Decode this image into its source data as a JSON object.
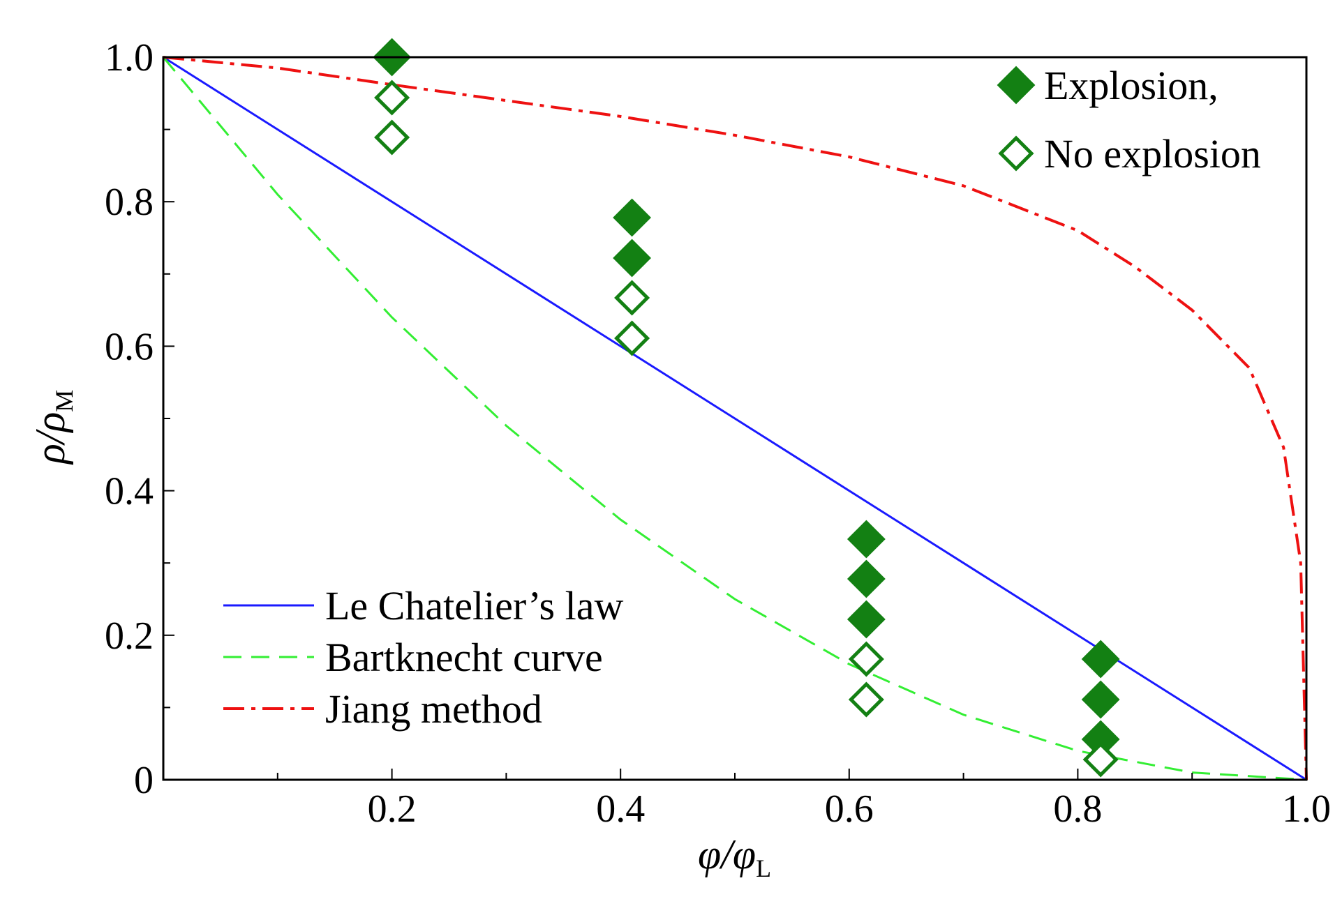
{
  "chart_data": {
    "type": "line",
    "xlabel": {
      "main": "φ/φ",
      "sub": "L"
    },
    "ylabel": {
      "main": "ρ/ρ",
      "sub": "M"
    },
    "xlim": [
      0,
      1.0
    ],
    "ylim": [
      0,
      1.0
    ],
    "x_ticks": [
      "0.2",
      "0.4",
      "0.6",
      "0.8",
      "1.0"
    ],
    "y_ticks": [
      "0",
      "0.2",
      "0.4",
      "0.6",
      "0.8",
      "1.0"
    ],
    "grid": false,
    "series": [
      {
        "name": "Le Chatelier’s law",
        "style": "solid",
        "color": "#1a1aff",
        "x": [
          0,
          1.0
        ],
        "y": [
          1.0,
          0
        ]
      },
      {
        "name": "Bartknecht curve",
        "style": "dashed",
        "color": "#33ee33",
        "x": [
          0,
          0.1,
          0.2,
          0.3,
          0.4,
          0.5,
          0.6,
          0.7,
          0.8,
          0.9,
          1.0
        ],
        "y": [
          1.0,
          0.81,
          0.64,
          0.49,
          0.36,
          0.25,
          0.16,
          0.09,
          0.04,
          0.01,
          0
        ]
      },
      {
        "name": "Jiang method",
        "style": "dashdot",
        "color": "#ee1111",
        "x": [
          0,
          0.1,
          0.2,
          0.3,
          0.4,
          0.5,
          0.6,
          0.7,
          0.8,
          0.85,
          0.9,
          0.95,
          0.98,
          0.995,
          1.0
        ],
        "y": [
          1.0,
          0.985,
          0.962,
          0.94,
          0.918,
          0.892,
          0.862,
          0.822,
          0.76,
          0.71,
          0.65,
          0.57,
          0.46,
          0.3,
          0
        ]
      }
    ],
    "scatter": [
      {
        "name": "Explosion,",
        "marker": "filled-diamond",
        "color": "#138013",
        "points": [
          [
            0.2,
            1.0
          ],
          [
            0.41,
            0.778
          ],
          [
            0.41,
            0.722
          ],
          [
            0.615,
            0.333
          ],
          [
            0.615,
            0.278
          ],
          [
            0.615,
            0.222
          ],
          [
            0.82,
            0.167
          ],
          [
            0.82,
            0.111
          ],
          [
            0.82,
            0.056
          ]
        ]
      },
      {
        "name": "No explosion",
        "marker": "open-diamond",
        "color": "#138013",
        "points": [
          [
            0.2,
            0.944
          ],
          [
            0.2,
            0.889
          ],
          [
            0.41,
            0.667
          ],
          [
            0.41,
            0.611
          ],
          [
            0.615,
            0.167
          ],
          [
            0.615,
            0.111
          ],
          [
            0.82,
            0.028
          ]
        ]
      }
    ],
    "legend": {
      "lines_position": "bottom-left",
      "markers_position": "top-right"
    }
  }
}
